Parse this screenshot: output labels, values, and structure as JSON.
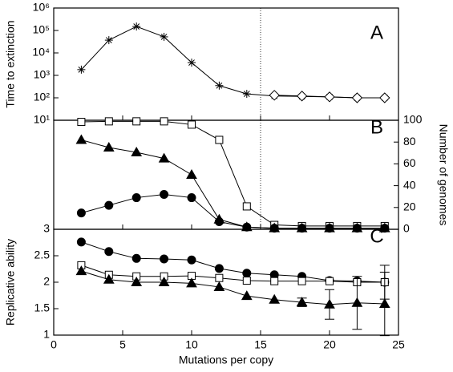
{
  "chart_data": [
    {
      "type": "line",
      "panel_label": "A",
      "ylabel": "Time to extinction",
      "ylog": true,
      "xlim": [
        0,
        25
      ],
      "ylim": [
        10,
        1000000
      ],
      "yaxis_side": "left",
      "vline": 15,
      "yticks": [
        {
          "value": 10,
          "label": "10¹"
        },
        {
          "value": 100,
          "label": "10²"
        },
        {
          "value": 1000,
          "label": "10³"
        },
        {
          "value": 10000,
          "label": "10⁴"
        },
        {
          "value": 100000,
          "label": "10⁵"
        },
        {
          "value": 1000000,
          "label": "10⁶"
        }
      ],
      "series": [
        {
          "marker": "star",
          "color": "#000000",
          "filled": true,
          "x": [
            2,
            4,
            6,
            8,
            10,
            12,
            14,
            16,
            18,
            20,
            22,
            24
          ],
          "values": [
            1800,
            37000,
            150000,
            52000,
            3700,
            350,
            150,
            120,
            115,
            110,
            100,
            100
          ]
        },
        {
          "marker": "diamond",
          "color": "#000000",
          "filled": false,
          "x": [
            16,
            18,
            20,
            22,
            24
          ],
          "values": [
            130,
            120,
            110,
            100,
            100
          ]
        }
      ]
    },
    {
      "type": "line",
      "panel_label": "B",
      "ylabel": "Number of genomes",
      "xlim": [
        0,
        25
      ],
      "ylim": [
        0,
        100
      ],
      "yaxis_side": "right",
      "vline": 15,
      "yticks": [
        0,
        20,
        40,
        60,
        80,
        100
      ],
      "series": [
        {
          "marker": "square",
          "color": "#000000",
          "filled": false,
          "x": [
            2,
            4,
            6,
            8,
            10,
            12,
            14,
            16,
            18,
            20,
            22,
            24
          ],
          "values": [
            98.5,
            99,
            99,
            99,
            96,
            82,
            21,
            4,
            3,
            3,
            3,
            3
          ]
        },
        {
          "marker": "triangle",
          "color": "#000000",
          "filled": true,
          "x": [
            2,
            4,
            6,
            8,
            10,
            12,
            14,
            16,
            18,
            20,
            22,
            24
          ],
          "values": [
            82,
            75,
            70.6,
            65,
            50,
            9,
            2,
            1,
            1,
            1,
            1,
            1
          ]
        },
        {
          "marker": "circle",
          "color": "#000000",
          "filled": true,
          "x": [
            2,
            4,
            6,
            8,
            10,
            12,
            14,
            16,
            18,
            20,
            22,
            24
          ],
          "values": [
            15,
            22,
            29,
            32,
            29,
            7,
            2,
            1,
            1,
            1,
            1,
            1
          ]
        }
      ]
    },
    {
      "type": "line",
      "panel_label": "C",
      "ylabel": "Replicative ability",
      "xlabel": "Mutations per copy",
      "xlim": [
        0,
        25
      ],
      "ylim": [
        1,
        3
      ],
      "yaxis_side": "left",
      "xticks": [
        0,
        5,
        10,
        15,
        20,
        25
      ],
      "yticks": [
        1,
        1.5,
        2,
        2.5,
        3
      ],
      "series": [
        {
          "marker": "circle",
          "color": "#000000",
          "filled": true,
          "x": [
            2,
            4,
            6,
            8,
            10,
            12,
            14,
            16,
            18,
            20,
            22,
            24
          ],
          "values": [
            2.76,
            2.58,
            2.45,
            2.44,
            2.42,
            2.26,
            2.17,
            2.14,
            2.11,
            2.03,
            2.02,
            2.0
          ]
        },
        {
          "marker": "square",
          "color": "#000000",
          "filled": false,
          "x": [
            2,
            4,
            6,
            8,
            10,
            12,
            14,
            16,
            18,
            20,
            22,
            24
          ],
          "values": [
            2.32,
            2.14,
            2.11,
            2.11,
            2.12,
            2.08,
            2.03,
            2.02,
            2.02,
            2.02,
            2.0,
            2.0
          ],
          "errors": [
            null,
            null,
            null,
            null,
            null,
            null,
            null,
            null,
            null,
            null,
            null,
            0.32
          ]
        },
        {
          "marker": "triangle",
          "color": "#000000",
          "filled": true,
          "x": [
            2,
            4,
            6,
            8,
            10,
            12,
            14,
            16,
            18,
            20,
            22,
            24
          ],
          "values": [
            2.21,
            2.05,
            2.0,
            2.0,
            1.98,
            1.91,
            1.74,
            1.67,
            1.62,
            1.58,
            1.61,
            1.59
          ],
          "errors": [
            null,
            null,
            null,
            null,
            null,
            null,
            null,
            null,
            0.08,
            0.28,
            0.5,
            0.6
          ]
        }
      ]
    }
  ]
}
